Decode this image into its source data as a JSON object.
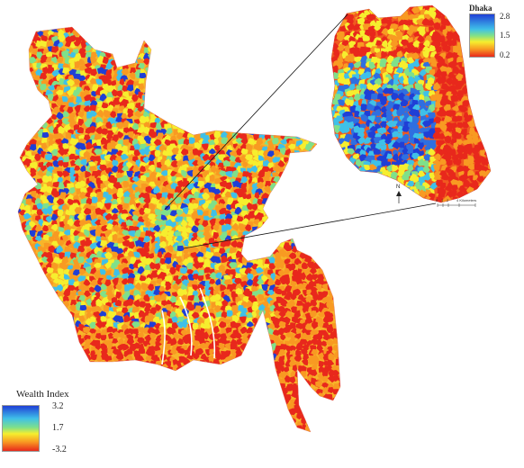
{
  "main_legend": {
    "title": "Wealth Index",
    "ticks": [
      "3.2",
      "1.7",
      "-3.2"
    ]
  },
  "inset_legend": {
    "title": "Dhaka",
    "ticks": [
      "2.8",
      "1.5",
      "0.2"
    ]
  },
  "scale_bar": {
    "labels": [
      "0",
      "1",
      "2",
      "4 Kilometers"
    ]
  },
  "north_arrow": "N",
  "colors": {
    "high": "#1f3fd6",
    "mid_high": "#3fc0e8",
    "mid": "#7fe08a",
    "mid_low": "#f6ee2e",
    "low_mid": "#f89a22",
    "low": "#e8281c"
  }
}
